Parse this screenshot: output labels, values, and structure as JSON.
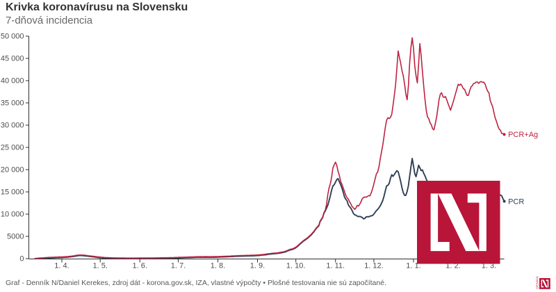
{
  "header": {
    "title": "Krivka koronavírusu na Slovensku",
    "subtitle": "7-dňová incidencia"
  },
  "chart_data": {
    "type": "line",
    "title": "Krivka koronavírusu na Slovensku",
    "subtitle": "7-dňová incidencia",
    "start_date": "2020-03-11",
    "frequency": "daily",
    "ylim": [
      0,
      50000
    ],
    "grid": false,
    "y_ticks": [
      0,
      5000,
      10000,
      15000,
      20000,
      25000,
      30000,
      35000,
      40000,
      45000,
      50000
    ],
    "y_tick_labels": [
      "0",
      "5000",
      "10 000",
      "15 000",
      "20 000",
      "25 000",
      "30 000",
      "35 000",
      "40 000",
      "45 000",
      "50 000"
    ],
    "x_ticks": [
      {
        "label": "1. 4.",
        "day": 21
      },
      {
        "label": "1. 5.",
        "day": 51
      },
      {
        "label": "1. 6.",
        "day": 82
      },
      {
        "label": "1. 7.",
        "day": 112
      },
      {
        "label": "1. 8.",
        "day": 143
      },
      {
        "label": "1. 9.",
        "day": 174
      },
      {
        "label": "1. 10.",
        "day": 204
      },
      {
        "label": "1. 11.",
        "day": 235
      },
      {
        "label": "1. 12.",
        "day": 265
      },
      {
        "label": "1. 1.",
        "day": 296
      },
      {
        "label": "1. 2.",
        "day": 327
      },
      {
        "label": "1. 3.",
        "day": 355
      }
    ],
    "series": [
      {
        "name": "PCR+Ag",
        "color": "#bd2340",
        "values": [
          50,
          76,
          99,
          120,
          137,
          154,
          171,
          191,
          213,
          240,
          258,
          277,
          289,
          296,
          308,
          322,
          336,
          350,
          360,
          368,
          380,
          387,
          402,
          420,
          440,
          465,
          488,
          520,
          551,
          578,
          621,
          663,
          714,
          766,
          795,
          816,
          817,
          804,
          790,
          759,
          723,
          688,
          645,
          622,
          583,
          556,
          518,
          480,
          438,
          398,
          369,
          338,
          312,
          291,
          272,
          257,
          238,
          223,
          207,
          194,
          185,
          176,
          171,
          165,
          158,
          154,
          149,
          147,
          140,
          139,
          135,
          131,
          129,
          130,
          127,
          127,
          126,
          124,
          126,
          127,
          131,
          133,
          135,
          136,
          139,
          141,
          144,
          146,
          149,
          150,
          152,
          157,
          160,
          162,
          167,
          169,
          174,
          178,
          180,
          185,
          188,
          194,
          197,
          203,
          210,
          214,
          223,
          232,
          240,
          248,
          258,
          267,
          282,
          292,
          301,
          312,
          322,
          328,
          342,
          350,
          362,
          373,
          380,
          388,
          399,
          409,
          420,
          430,
          429,
          438,
          440,
          442,
          443,
          446,
          452,
          445,
          443,
          442,
          437,
          444,
          450,
          452,
          462,
          468,
          478,
          486,
          502,
          512,
          519,
          533,
          551,
          556,
          568,
          585,
          604,
          610,
          629,
          643,
          649,
          668,
          674,
          690,
          700,
          708,
          712,
          728,
          730,
          735,
          742,
          759,
          770,
          771,
          790,
          800,
          822,
          835,
          869,
          894,
          935,
          954,
          992,
          1027,
          1083,
          1123,
          1145,
          1183,
          1214,
          1233,
          1259,
          1281,
          1310,
          1370,
          1417,
          1463,
          1513,
          1578,
          1667,
          1781,
          1911,
          2030,
          2119,
          2179,
          2270,
          2417,
          2588,
          2802,
          3058,
          3345,
          3569,
          3826,
          4069,
          4278,
          4473,
          4657,
          4947,
          5172,
          5463,
          5801,
          6116,
          6535,
          6920,
          7220,
          7544,
          8480,
          8912,
          9357,
          10388,
          10879,
          12185,
          14434,
          15884,
          16901,
          18325,
          20397,
          21084,
          21686,
          20917,
          19630,
          18749,
          17398,
          16732,
          15929,
          15112,
          14267,
          13680,
          13403,
          12783,
          12302,
          11697,
          11422,
          11059,
          11376,
          11975,
          11811,
          12227,
          12813,
          13505,
          13748,
          13867,
          13799,
          13979,
          14174,
          14108,
          14805,
          15706,
          16772,
          17963,
          19069,
          19451,
          20623,
          22424,
          24033,
          25568,
          27503,
          29606,
          31101,
          31669,
          31485,
          31715,
          32472,
          34440,
          36693,
          39112,
          42686,
          46666,
          45219,
          43873,
          42232,
          41141,
          39264,
          37084,
          35700,
          38724,
          43889,
          47479,
          49620,
          47228,
          43277,
          41091,
          39503,
          43645,
          48327,
          45533,
          42104,
          38657,
          35804,
          33310,
          31798,
          31466,
          30474,
          30067,
          29177,
          28951,
          30250,
          31691,
          33618,
          35741,
          36981,
          37268,
          36435,
          36232,
          36440,
          35703,
          34861,
          34077,
          33342,
          34233,
          35171,
          36148,
          37230,
          38201,
          39181,
          38956,
          39227,
          38780,
          38182,
          38042,
          37236,
          36683,
          36732,
          37794,
          38582,
          38870,
          39353,
          39428,
          39683,
          39696,
          39375,
          39710,
          39790,
          39602,
          39653,
          39212,
          38366,
          37607,
          37295,
          35594,
          34754,
          34068,
          32644,
          31536,
          30779,
          29778,
          29124,
          28827,
          28142,
          28132,
          27902
        ]
      },
      {
        "name": "PCR",
        "color": "#2e3e53",
        "values": [
          15,
          15,
          15,
          15,
          15,
          24,
          41,
          61,
          83,
          110,
          128,
          147,
          159,
          166,
          178,
          192,
          206,
          220,
          230,
          238,
          250,
          257,
          272,
          290,
          310,
          335,
          358,
          390,
          421,
          448,
          491,
          533,
          584,
          636,
          665,
          686,
          687,
          674,
          660,
          629,
          593,
          558,
          515,
          492,
          453,
          426,
          388,
          350,
          308,
          268,
          239,
          208,
          182,
          161,
          142,
          127,
          108,
          93,
          77,
          64,
          55,
          46,
          41,
          35,
          28,
          24,
          19,
          17,
          15,
          15,
          15,
          15,
          15,
          15,
          15,
          15,
          15,
          15,
          15,
          15,
          15,
          15,
          15,
          15,
          15,
          15,
          15,
          16,
          19,
          20,
          22,
          27,
          30,
          32,
          37,
          39,
          44,
          48,
          50,
          55,
          58,
          64,
          67,
          73,
          80,
          84,
          93,
          102,
          110,
          118,
          128,
          137,
          152,
          162,
          171,
          182,
          192,
          198,
          212,
          220,
          232,
          243,
          250,
          258,
          269,
          279,
          290,
          300,
          299,
          308,
          310,
          312,
          313,
          316,
          322,
          315,
          313,
          312,
          307,
          314,
          320,
          322,
          332,
          338,
          348,
          356,
          372,
          382,
          389,
          403,
          421,
          426,
          438,
          455,
          474,
          480,
          499,
          513,
          519,
          538,
          544,
          560,
          570,
          578,
          582,
          598,
          600,
          605,
          612,
          629,
          640,
          641,
          660,
          670,
          692,
          705,
          739,
          764,
          805,
          824,
          862,
          897,
          953,
          993,
          1015,
          1053,
          1084,
          1103,
          1129,
          1151,
          1180,
          1240,
          1287,
          1333,
          1383,
          1448,
          1537,
          1651,
          1781,
          1900,
          1989,
          2049,
          2140,
          2287,
          2458,
          2672,
          2928,
          3215,
          3439,
          3696,
          3939,
          4148,
          4343,
          4527,
          4817,
          5042,
          5333,
          5671,
          5986,
          6405,
          6790,
          7090,
          7414,
          8350,
          8782,
          9227,
          10258,
          10695,
          11334,
          12029,
          13027,
          14182,
          15408,
          16335,
          16603,
          17172,
          17778,
          17987,
          17308,
          16659,
          15901,
          14951,
          13884,
          13372,
          13030,
          12108,
          11678,
          11335,
          10814,
          10159,
          9854,
          9743,
          9545,
          9450,
          9478,
          9397,
          9220,
          8929,
          9044,
          9392,
          9421,
          9408,
          9536,
          9618,
          9702,
          10006,
          10426,
          10790,
          11056,
          11447,
          11851,
          12472,
          13086,
          14055,
          15320,
          16349,
          16486,
          16918,
          18030,
          18861,
          18496,
          18899,
          19355,
          19763,
          19530,
          18481,
          17279,
          15893,
          14842,
          14215,
          14237,
          15119,
          16358,
          18460,
          20639,
          22493,
          20849,
          19080,
          18415,
          19679,
          20981,
          20421,
          19783,
          19941,
          19154,
          18608,
          17871,
          17248,
          16636,
          16470,
          16366,
          16105,
          15923,
          15632,
          15498,
          15547,
          15541,
          15370,
          15320,
          15205,
          15312,
          15114,
          15070,
          14982,
          14902,
          14744,
          14632,
          14729,
          14660,
          14776,
          14708,
          14857,
          14947,
          14879,
          15002,
          14985,
          14981,
          15214,
          14993,
          15084,
          14901,
          14982,
          14970,
          14893,
          14825,
          14777,
          14727,
          14847,
          14787,
          14790,
          14534,
          14661,
          14682,
          14450,
          14387,
          14527,
          14447,
          14489,
          14289,
          14443,
          14273,
          14239,
          14214,
          14361,
          14292,
          14106,
          13466,
          12887
        ]
      }
    ]
  },
  "footer": {
    "attribution": "Graf - Denník N/Daniel Kerekes, zdroj dát - korona.gov.sk, IZA, vlastné výpočty • Plošné testovania nie sú započítané."
  },
  "branding": {
    "logo_name": "Denník N",
    "logo_color": "#b81539",
    "logo_vertical_text": "DENNÍK"
  }
}
